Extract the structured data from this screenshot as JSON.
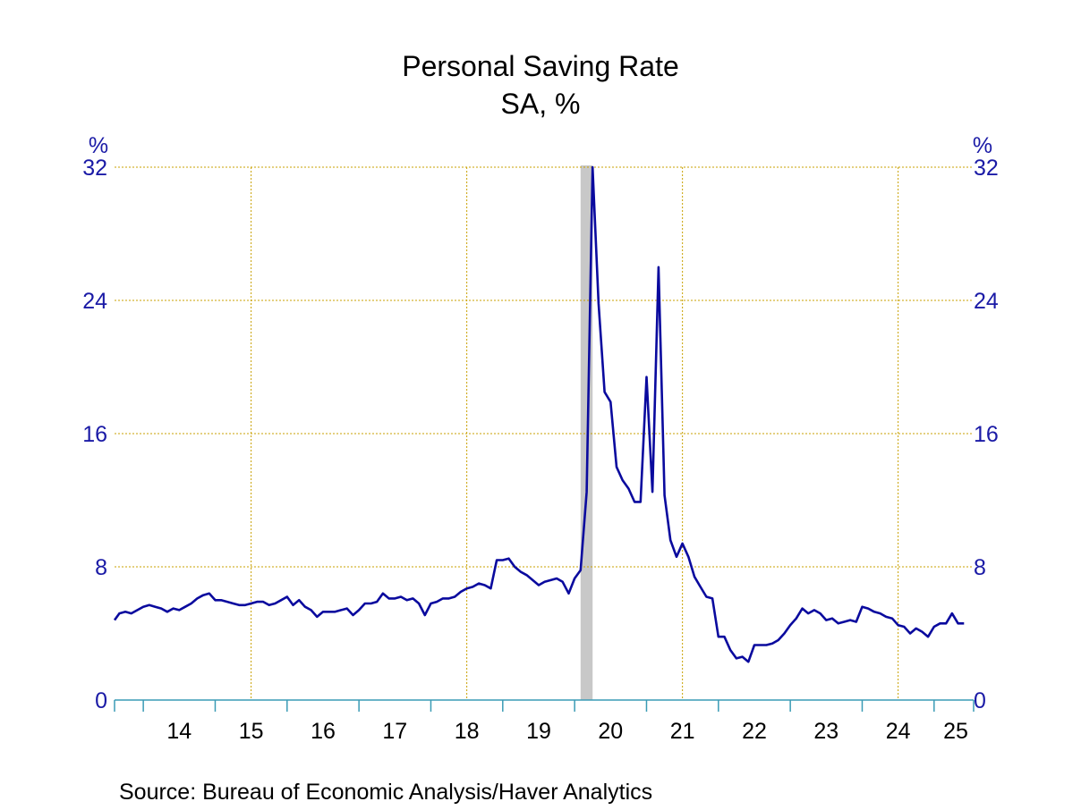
{
  "colors": {
    "series": "#0A0A9E",
    "axis_text": "#1A1AA6",
    "grid": "#C8A000",
    "baseline": "#3A9BB5",
    "recession": "#C8C8C8",
    "text": "#000000"
  },
  "source": "Source:  Bureau of Economic Analysis/Haver Analytics",
  "chart_data": {
    "type": "line",
    "title": "Personal Saving Rate",
    "subtitle": "SA, %",
    "ylabel_left": "%",
    "ylabel_right": "%",
    "ylim": [
      0,
      32
    ],
    "yticks": [
      "0",
      "8",
      "16",
      "24",
      "32"
    ],
    "xlim": [
      2013.6,
      2025.55
    ],
    "xticks": [
      {
        "label": "14",
        "year": 2014
      },
      {
        "label": "15",
        "year": 2015
      },
      {
        "label": "16",
        "year": 2016
      },
      {
        "label": "17",
        "year": 2017
      },
      {
        "label": "18",
        "year": 2018
      },
      {
        "label": "19",
        "year": 2019
      },
      {
        "label": "20",
        "year": 2020
      },
      {
        "label": "21",
        "year": 2021
      },
      {
        "label": "22",
        "year": 2022
      },
      {
        "label": "23",
        "year": 2023
      },
      {
        "label": "24",
        "year": 2024
      },
      {
        "label": "25",
        "year": 2025
      }
    ],
    "gridlines_x": [
      2015.5,
      2018.5,
      2021.5,
      2024.5
    ],
    "grid": true,
    "recessions": [
      [
        2020.083,
        2020.25
      ]
    ],
    "series": [
      {
        "values": [
          [
            2013.6,
            4.8
          ],
          [
            2013.667,
            5.2
          ],
          [
            2013.75,
            5.3
          ],
          [
            2013.833,
            5.2
          ],
          [
            2013.917,
            5.4
          ],
          [
            2014.0,
            5.6
          ],
          [
            2014.083,
            5.7
          ],
          [
            2014.167,
            5.6
          ],
          [
            2014.25,
            5.5
          ],
          [
            2014.333,
            5.3
          ],
          [
            2014.417,
            5.5
          ],
          [
            2014.5,
            5.4
          ],
          [
            2014.583,
            5.6
          ],
          [
            2014.667,
            5.8
          ],
          [
            2014.75,
            6.1
          ],
          [
            2014.833,
            6.3
          ],
          [
            2014.917,
            6.4
          ],
          [
            2015.0,
            6.0
          ],
          [
            2015.083,
            6.0
          ],
          [
            2015.167,
            5.9
          ],
          [
            2015.25,
            5.8
          ],
          [
            2015.333,
            5.7
          ],
          [
            2015.417,
            5.7
          ],
          [
            2015.5,
            5.8
          ],
          [
            2015.583,
            5.9
          ],
          [
            2015.667,
            5.9
          ],
          [
            2015.75,
            5.7
          ],
          [
            2015.833,
            5.8
          ],
          [
            2015.917,
            6.0
          ],
          [
            2016.0,
            6.2
          ],
          [
            2016.083,
            5.7
          ],
          [
            2016.167,
            6.0
          ],
          [
            2016.25,
            5.6
          ],
          [
            2016.333,
            5.4
          ],
          [
            2016.417,
            5.0
          ],
          [
            2016.5,
            5.3
          ],
          [
            2016.583,
            5.3
          ],
          [
            2016.667,
            5.3
          ],
          [
            2016.75,
            5.4
          ],
          [
            2016.833,
            5.5
          ],
          [
            2016.917,
            5.1
          ],
          [
            2017.0,
            5.4
          ],
          [
            2017.083,
            5.8
          ],
          [
            2017.167,
            5.8
          ],
          [
            2017.25,
            5.9
          ],
          [
            2017.333,
            6.4
          ],
          [
            2017.417,
            6.1
          ],
          [
            2017.5,
            6.1
          ],
          [
            2017.583,
            6.2
          ],
          [
            2017.667,
            6.0
          ],
          [
            2017.75,
            6.1
          ],
          [
            2017.833,
            5.8
          ],
          [
            2017.917,
            5.1
          ],
          [
            2018.0,
            5.8
          ],
          [
            2018.083,
            5.9
          ],
          [
            2018.167,
            6.1
          ],
          [
            2018.25,
            6.1
          ],
          [
            2018.333,
            6.2
          ],
          [
            2018.417,
            6.5
          ],
          [
            2018.5,
            6.7
          ],
          [
            2018.583,
            6.8
          ],
          [
            2018.667,
            7.0
          ],
          [
            2018.75,
            6.9
          ],
          [
            2018.833,
            6.7
          ],
          [
            2018.917,
            8.4
          ],
          [
            2019.0,
            8.4
          ],
          [
            2019.083,
            8.5
          ],
          [
            2019.167,
            8.0
          ],
          [
            2019.25,
            7.7
          ],
          [
            2019.333,
            7.5
          ],
          [
            2019.417,
            7.2
          ],
          [
            2019.5,
            6.9
          ],
          [
            2019.583,
            7.1
          ],
          [
            2019.667,
            7.2
          ],
          [
            2019.75,
            7.3
          ],
          [
            2019.833,
            7.1
          ],
          [
            2019.917,
            6.4
          ],
          [
            2020.0,
            7.3
          ],
          [
            2020.083,
            7.8
          ],
          [
            2020.167,
            12.5
          ],
          [
            2020.25,
            32.0
          ],
          [
            2020.333,
            23.8
          ],
          [
            2020.417,
            18.5
          ],
          [
            2020.5,
            17.9
          ],
          [
            2020.583,
            14.0
          ],
          [
            2020.667,
            13.2
          ],
          [
            2020.75,
            12.7
          ],
          [
            2020.833,
            11.9
          ],
          [
            2020.917,
            11.9
          ],
          [
            2021.0,
            19.4
          ],
          [
            2021.083,
            12.5
          ],
          [
            2021.167,
            26.0
          ],
          [
            2021.25,
            12.3
          ],
          [
            2021.333,
            9.6
          ],
          [
            2021.417,
            8.6
          ],
          [
            2021.5,
            9.4
          ],
          [
            2021.583,
            8.6
          ],
          [
            2021.667,
            7.4
          ],
          [
            2021.75,
            6.8
          ],
          [
            2021.833,
            6.2
          ],
          [
            2021.917,
            6.1
          ],
          [
            2022.0,
            3.8
          ],
          [
            2022.083,
            3.8
          ],
          [
            2022.167,
            3.0
          ],
          [
            2022.25,
            2.5
          ],
          [
            2022.333,
            2.6
          ],
          [
            2022.417,
            2.3
          ],
          [
            2022.5,
            3.3
          ],
          [
            2022.583,
            3.3
          ],
          [
            2022.667,
            3.3
          ],
          [
            2022.75,
            3.4
          ],
          [
            2022.833,
            3.6
          ],
          [
            2022.917,
            4.0
          ],
          [
            2023.0,
            4.5
          ],
          [
            2023.083,
            4.9
          ],
          [
            2023.167,
            5.5
          ],
          [
            2023.25,
            5.2
          ],
          [
            2023.333,
            5.4
          ],
          [
            2023.417,
            5.2
          ],
          [
            2023.5,
            4.8
          ],
          [
            2023.583,
            4.9
          ],
          [
            2023.667,
            4.6
          ],
          [
            2023.75,
            4.7
          ],
          [
            2023.833,
            4.8
          ],
          [
            2023.917,
            4.7
          ],
          [
            2024.0,
            5.6
          ],
          [
            2024.083,
            5.5
          ],
          [
            2024.167,
            5.3
          ],
          [
            2024.25,
            5.2
          ],
          [
            2024.333,
            5.0
          ],
          [
            2024.417,
            4.9
          ],
          [
            2024.5,
            4.5
          ],
          [
            2024.583,
            4.4
          ],
          [
            2024.667,
            4.0
          ],
          [
            2024.75,
            4.3
          ],
          [
            2024.833,
            4.1
          ],
          [
            2024.917,
            3.8
          ],
          [
            2025.0,
            4.4
          ],
          [
            2025.083,
            4.6
          ],
          [
            2025.167,
            4.6
          ],
          [
            2025.25,
            5.2
          ],
          [
            2025.333,
            4.6
          ],
          [
            2025.417,
            4.6
          ]
        ]
      }
    ]
  }
}
